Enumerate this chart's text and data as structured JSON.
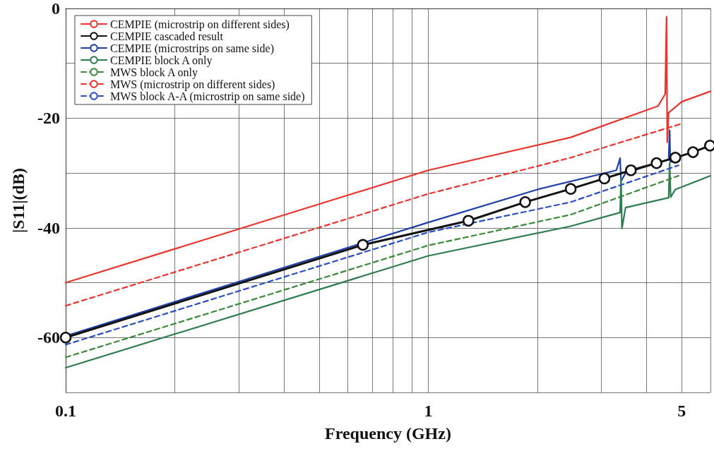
{
  "chart_data": {
    "type": "line",
    "xlabel": "Frequency (GHz)",
    "ylabel": "|S11|(dB)",
    "log": "x",
    "xlim": [
      0.1,
      6
    ],
    "xticks": [
      0.1,
      {
        "value": 0.2,
        "label": null
      },
      {
        "value": 0.3,
        "label": null
      },
      {
        "value": 0.4,
        "label": null
      },
      {
        "value": 0.5,
        "label": null
      },
      {
        "value": 0.6,
        "label": null
      },
      {
        "value": 0.7,
        "label": null
      },
      {
        "value": 0.8,
        "label": null
      },
      {
        "value": 0.9,
        "label": null
      },
      1,
      {
        "value": 2,
        "label": null
      },
      {
        "value": 3,
        "label": null
      },
      {
        "value": 4,
        "label": null
      },
      5,
      {
        "value": 6,
        "label": null
      }
    ],
    "ylim": [
      -70,
      0
    ],
    "yticks": [
      {
        "value": -70,
        "label": null
      },
      -60,
      {
        "value": -50,
        "label": null
      },
      -40,
      {
        "value": -30,
        "label": null
      },
      -20,
      {
        "value": -10,
        "label": null
      },
      0
    ],
    "grid": true,
    "legend": "top left",
    "marker": "none",
    "series": [
      {
        "name": "CEMPIE (microstrip on different sides)",
        "color": "#e8352e",
        "line_style": "solid",
        "x": [
          0.1,
          1,
          2.47,
          4.3,
          4.5,
          4.54,
          4.56,
          4.6,
          5,
          6
        ],
        "values": [
          -50,
          -29.5,
          -23.5,
          -17.8,
          -15.6,
          -1.5,
          -24.4,
          -19,
          -17,
          -15.1
        ]
      },
      {
        "name": "CEMPIE cascaded result",
        "color": "#111111",
        "line_style": "solid",
        "marker": "circle",
        "x": [
          0.1,
          0.66,
          1.29,
          1.85,
          2.47,
          3.06,
          3.62,
          4.26,
          4.8,
          5.37,
          5.98
        ],
        "values": [
          -60,
          -43.1,
          -38.7,
          -35.3,
          -32.9,
          -31,
          -29.5,
          -28.2,
          -27.2,
          -26.2,
          -25
        ]
      },
      {
        "name": "CEMPIE (microstrips on same side)",
        "color": "#1f3fa8",
        "line_style": "solid",
        "x": [
          0.1,
          1,
          2,
          3.3,
          3.38,
          3.4,
          3.5,
          4.6,
          4.63,
          4.65,
          4.9
        ],
        "values": [
          -59.7,
          -39,
          -33,
          -29.5,
          -27.3,
          -31.5,
          -30,
          -27.5,
          -22.2,
          -28,
          -26.8
        ]
      },
      {
        "name": "CEMPIE block A only",
        "color": "#2e7d4f",
        "line_style": "solid",
        "x": [
          0.1,
          1,
          2.47,
          3.38,
          3.4,
          3.42,
          3.5,
          4.6,
          4.63,
          4.66,
          4.8,
          6
        ],
        "values": [
          -65.5,
          -45.1,
          -39.7,
          -37.2,
          -31,
          -40.1,
          -36.3,
          -34.5,
          -28.2,
          -34.4,
          -33,
          -30.5
        ]
      },
      {
        "name": "MWS block A only",
        "color": "#3a8a3a",
        "line_style": "dashed",
        "x": [
          0.1,
          1,
          2.47,
          4.9
        ],
        "values": [
          -63.6,
          -43.2,
          -37.6,
          -30.5
        ]
      },
      {
        "name": "MWS (microstrip on different sides)",
        "color": "#e8352e",
        "line_style": "dashed",
        "x": [
          0.1,
          1,
          2.47,
          5
        ],
        "values": [
          -54.2,
          -33.8,
          -27.2,
          -21
        ]
      },
      {
        "name": "MWS block A-A (microstrip on same side)",
        "color": "#2a4fc0",
        "line_style": "dashed",
        "x": [
          0.1,
          1,
          2.47,
          4.9
        ],
        "values": [
          -61.3,
          -40.8,
          -35.3,
          -28.6
        ]
      }
    ]
  }
}
